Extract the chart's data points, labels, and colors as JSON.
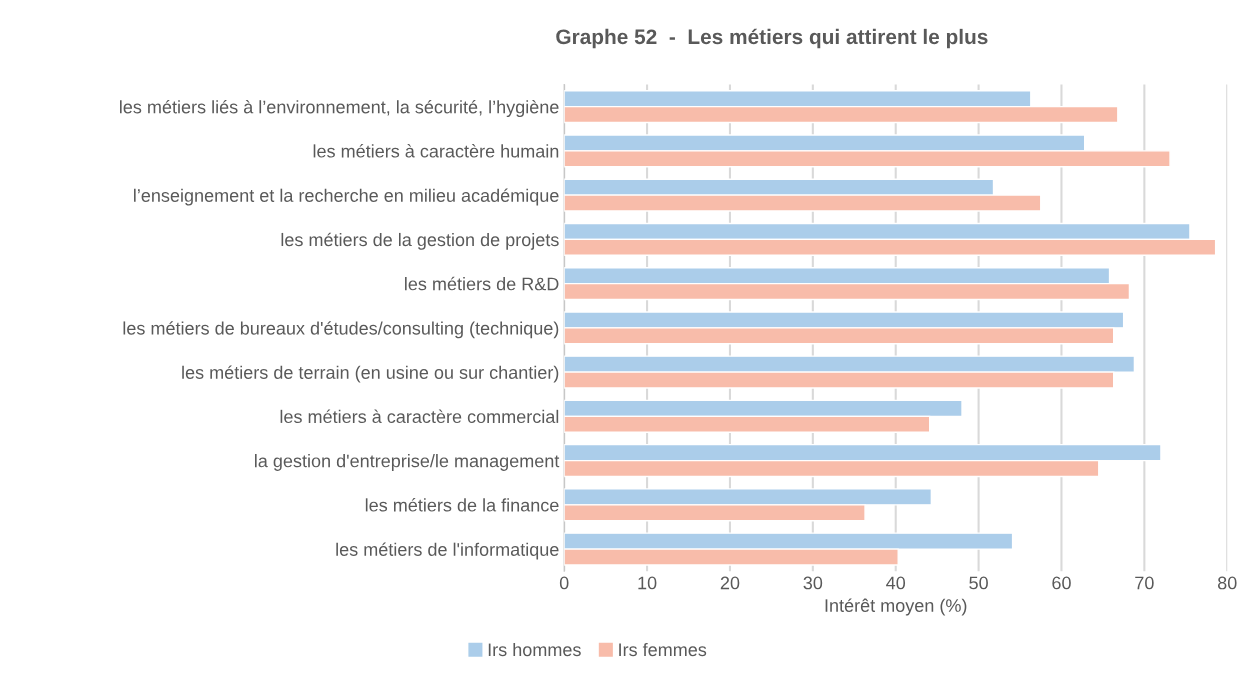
{
  "chart_data": {
    "type": "bar",
    "orientation": "horizontal",
    "title": "Graphe 52  -  Les métiers qui attirent le plus",
    "xlabel": "Intérêt moyen (%)",
    "categories": [
      "les métiers liés à l’environnement, la sécurité, l’hygiène",
      "les métiers à caractère humain",
      "l’enseignement et la recherche en milieu académique",
      "les métiers de la gestion de projets",
      "les métiers de R&D",
      "les métiers de bureaux d'études/consulting (technique)",
      "les métiers de terrain (en usine ou sur chantier)",
      "les métiers à caractère commercial",
      "la gestion d'entreprise/le management",
      "les métiers de la finance",
      "les métiers de l'informatique"
    ],
    "series": [
      {
        "name": "Irs hommes",
        "color": "#abcdea",
        "values": [
          56.3,
          62.8,
          51.8,
          75.5,
          65.8,
          67.5,
          68.8,
          48.0,
          72.0,
          44.3,
          54.1
        ]
      },
      {
        "name": "Irs femmes",
        "color": "#f8bcaa",
        "values": [
          66.8,
          73.1,
          57.5,
          78.6,
          68.2,
          66.3,
          66.3,
          44.1,
          64.5,
          36.3,
          40.3
        ]
      }
    ],
    "xlim": [
      0,
      80
    ],
    "xticks": [
      0,
      10,
      20,
      30,
      40,
      50,
      60,
      70,
      80
    ],
    "grid": "x",
    "legend": "bottom"
  }
}
